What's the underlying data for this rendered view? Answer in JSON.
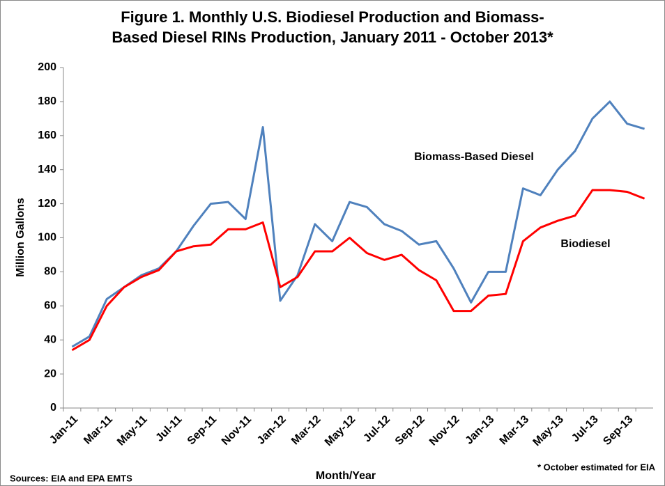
{
  "chart_data": {
    "type": "line",
    "title": [
      "Figure 1. Monthly U.S.  Biodiesel Production and Biomass-",
      "Based Diesel RINs Production, January 2011 - October 2013*"
    ],
    "x_label": "Month/Year",
    "y_label": "Million Gallons",
    "source": "Sources: EIA and EPA EMTS",
    "footnote": "* October estimated for EIA",
    "categories": [
      "Jan-11",
      null,
      "Mar-11",
      null,
      "May-11",
      null,
      "Jul-11",
      null,
      "Sep-11",
      null,
      "Nov-11",
      null,
      "Jan-12",
      null,
      "Mar-12",
      null,
      "May-12",
      null,
      "Jul-12",
      null,
      "Sep-12",
      null,
      "Nov-12",
      null,
      "Jan-13",
      null,
      "Mar-13",
      null,
      "May-13",
      null,
      "Jul-13",
      null,
      "Sep-13",
      null
    ],
    "series": [
      {
        "name": "Biomass-Based Diesel",
        "color": "#4f81bd",
        "values": [
          36,
          42,
          64,
          71,
          78,
          82,
          92,
          107,
          120,
          121,
          111,
          165,
          63,
          78,
          108,
          98,
          121,
          118,
          108,
          104,
          96,
          98,
          82,
          62,
          80,
          80,
          129,
          125,
          140,
          151,
          170,
          180,
          167,
          164
        ]
      },
      {
        "name": "Biodiesel",
        "color": "#ff0000",
        "values": [
          34,
          40,
          60,
          71,
          77,
          81,
          92,
          95,
          96,
          105,
          105,
          109,
          71,
          77,
          92,
          92,
          100,
          91,
          87,
          90,
          81,
          75,
          57,
          57,
          66,
          67,
          98,
          106,
          110,
          113,
          128,
          128,
          127,
          123
        ]
      }
    ],
    "ylim": [
      0,
      200
    ],
    "yticks": [
      0,
      20,
      40,
      60,
      80,
      100,
      120,
      140,
      160,
      180,
      200
    ],
    "grid": false
  }
}
